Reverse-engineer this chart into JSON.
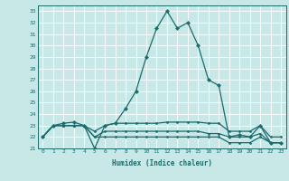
{
  "xlabel": "Humidex (Indice chaleur)",
  "xlim": [
    -0.5,
    23.5
  ],
  "ylim": [
    21,
    33.5
  ],
  "yticks": [
    21,
    22,
    23,
    24,
    25,
    26,
    27,
    28,
    29,
    30,
    31,
    32,
    33
  ],
  "xticks": [
    0,
    1,
    2,
    3,
    4,
    5,
    6,
    7,
    8,
    9,
    10,
    11,
    12,
    13,
    14,
    15,
    16,
    17,
    18,
    19,
    20,
    21,
    22,
    23
  ],
  "bg_color": "#c8e8e8",
  "grid_color": "#ffffff",
  "line_color": "#1a6b6b",
  "lines": [
    {
      "x": [
        0,
        1,
        2,
        3,
        4,
        5,
        6,
        7,
        8,
        9,
        10,
        11,
        12,
        13,
        14,
        15,
        16,
        17,
        18,
        19,
        20,
        21,
        22,
        23
      ],
      "y": [
        22,
        23,
        23.2,
        23.3,
        23,
        21,
        23,
        23.2,
        24.5,
        26,
        29,
        31.5,
        33,
        31.5,
        32,
        30,
        27,
        26.5,
        22,
        22.2,
        22,
        23,
        21.5,
        21.5
      ]
    },
    {
      "x": [
        0,
        1,
        2,
        3,
        4,
        5,
        6,
        7,
        8,
        9,
        10,
        11,
        12,
        13,
        14,
        15,
        16,
        17,
        18,
        19,
        20,
        21,
        22,
        23
      ],
      "y": [
        22,
        23,
        23,
        23,
        23,
        22.5,
        23,
        23.2,
        23.2,
        23.2,
        23.2,
        23.2,
        23.3,
        23.3,
        23.3,
        23.3,
        23.2,
        23.2,
        22.5,
        22.5,
        22.5,
        23,
        22,
        22
      ]
    },
    {
      "x": [
        0,
        1,
        2,
        3,
        4,
        5,
        6,
        7,
        8,
        9,
        10,
        11,
        12,
        13,
        14,
        15,
        16,
        17,
        18,
        19,
        20,
        21,
        22,
        23
      ],
      "y": [
        22,
        23,
        23,
        23,
        23,
        22,
        22.5,
        22.5,
        22.5,
        22.5,
        22.5,
        22.5,
        22.5,
        22.5,
        22.5,
        22.5,
        22.3,
        22.3,
        22,
        22,
        22,
        22.3,
        21.5,
        21.5
      ]
    },
    {
      "x": [
        0,
        1,
        2,
        3,
        4,
        5,
        6,
        7,
        8,
        9,
        10,
        11,
        12,
        13,
        14,
        15,
        16,
        17,
        18,
        19,
        20,
        21,
        22,
        23
      ],
      "y": [
        22,
        23,
        23,
        23,
        23,
        22,
        22,
        22,
        22,
        22,
        22,
        22,
        22,
        22,
        22,
        22,
        22,
        22,
        21.5,
        21.5,
        21.5,
        22,
        21.5,
        21.5
      ]
    }
  ]
}
